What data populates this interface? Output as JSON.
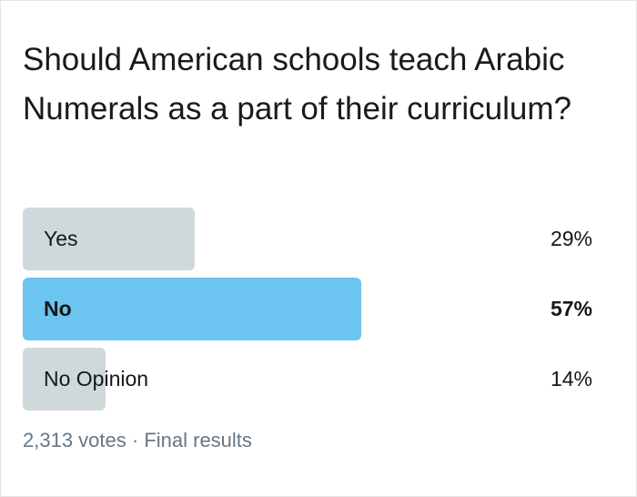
{
  "poll": {
    "question": "Should American schools teach Arabic Numerals as a part of their curriculum?",
    "options": [
      {
        "label": "Yes",
        "percent": "29%",
        "value": 29,
        "winner": false
      },
      {
        "label": "No",
        "percent": "57%",
        "value": 57,
        "winner": true
      },
      {
        "label": "No Opinion",
        "percent": "14%",
        "value": 14,
        "winner": false
      }
    ],
    "votes": "2,313 votes",
    "separator": "·",
    "status": "Final results"
  },
  "colors": {
    "bar": "#cfd9dc",
    "winner_bar": "#6cc5f0",
    "muted_text": "#657786"
  }
}
